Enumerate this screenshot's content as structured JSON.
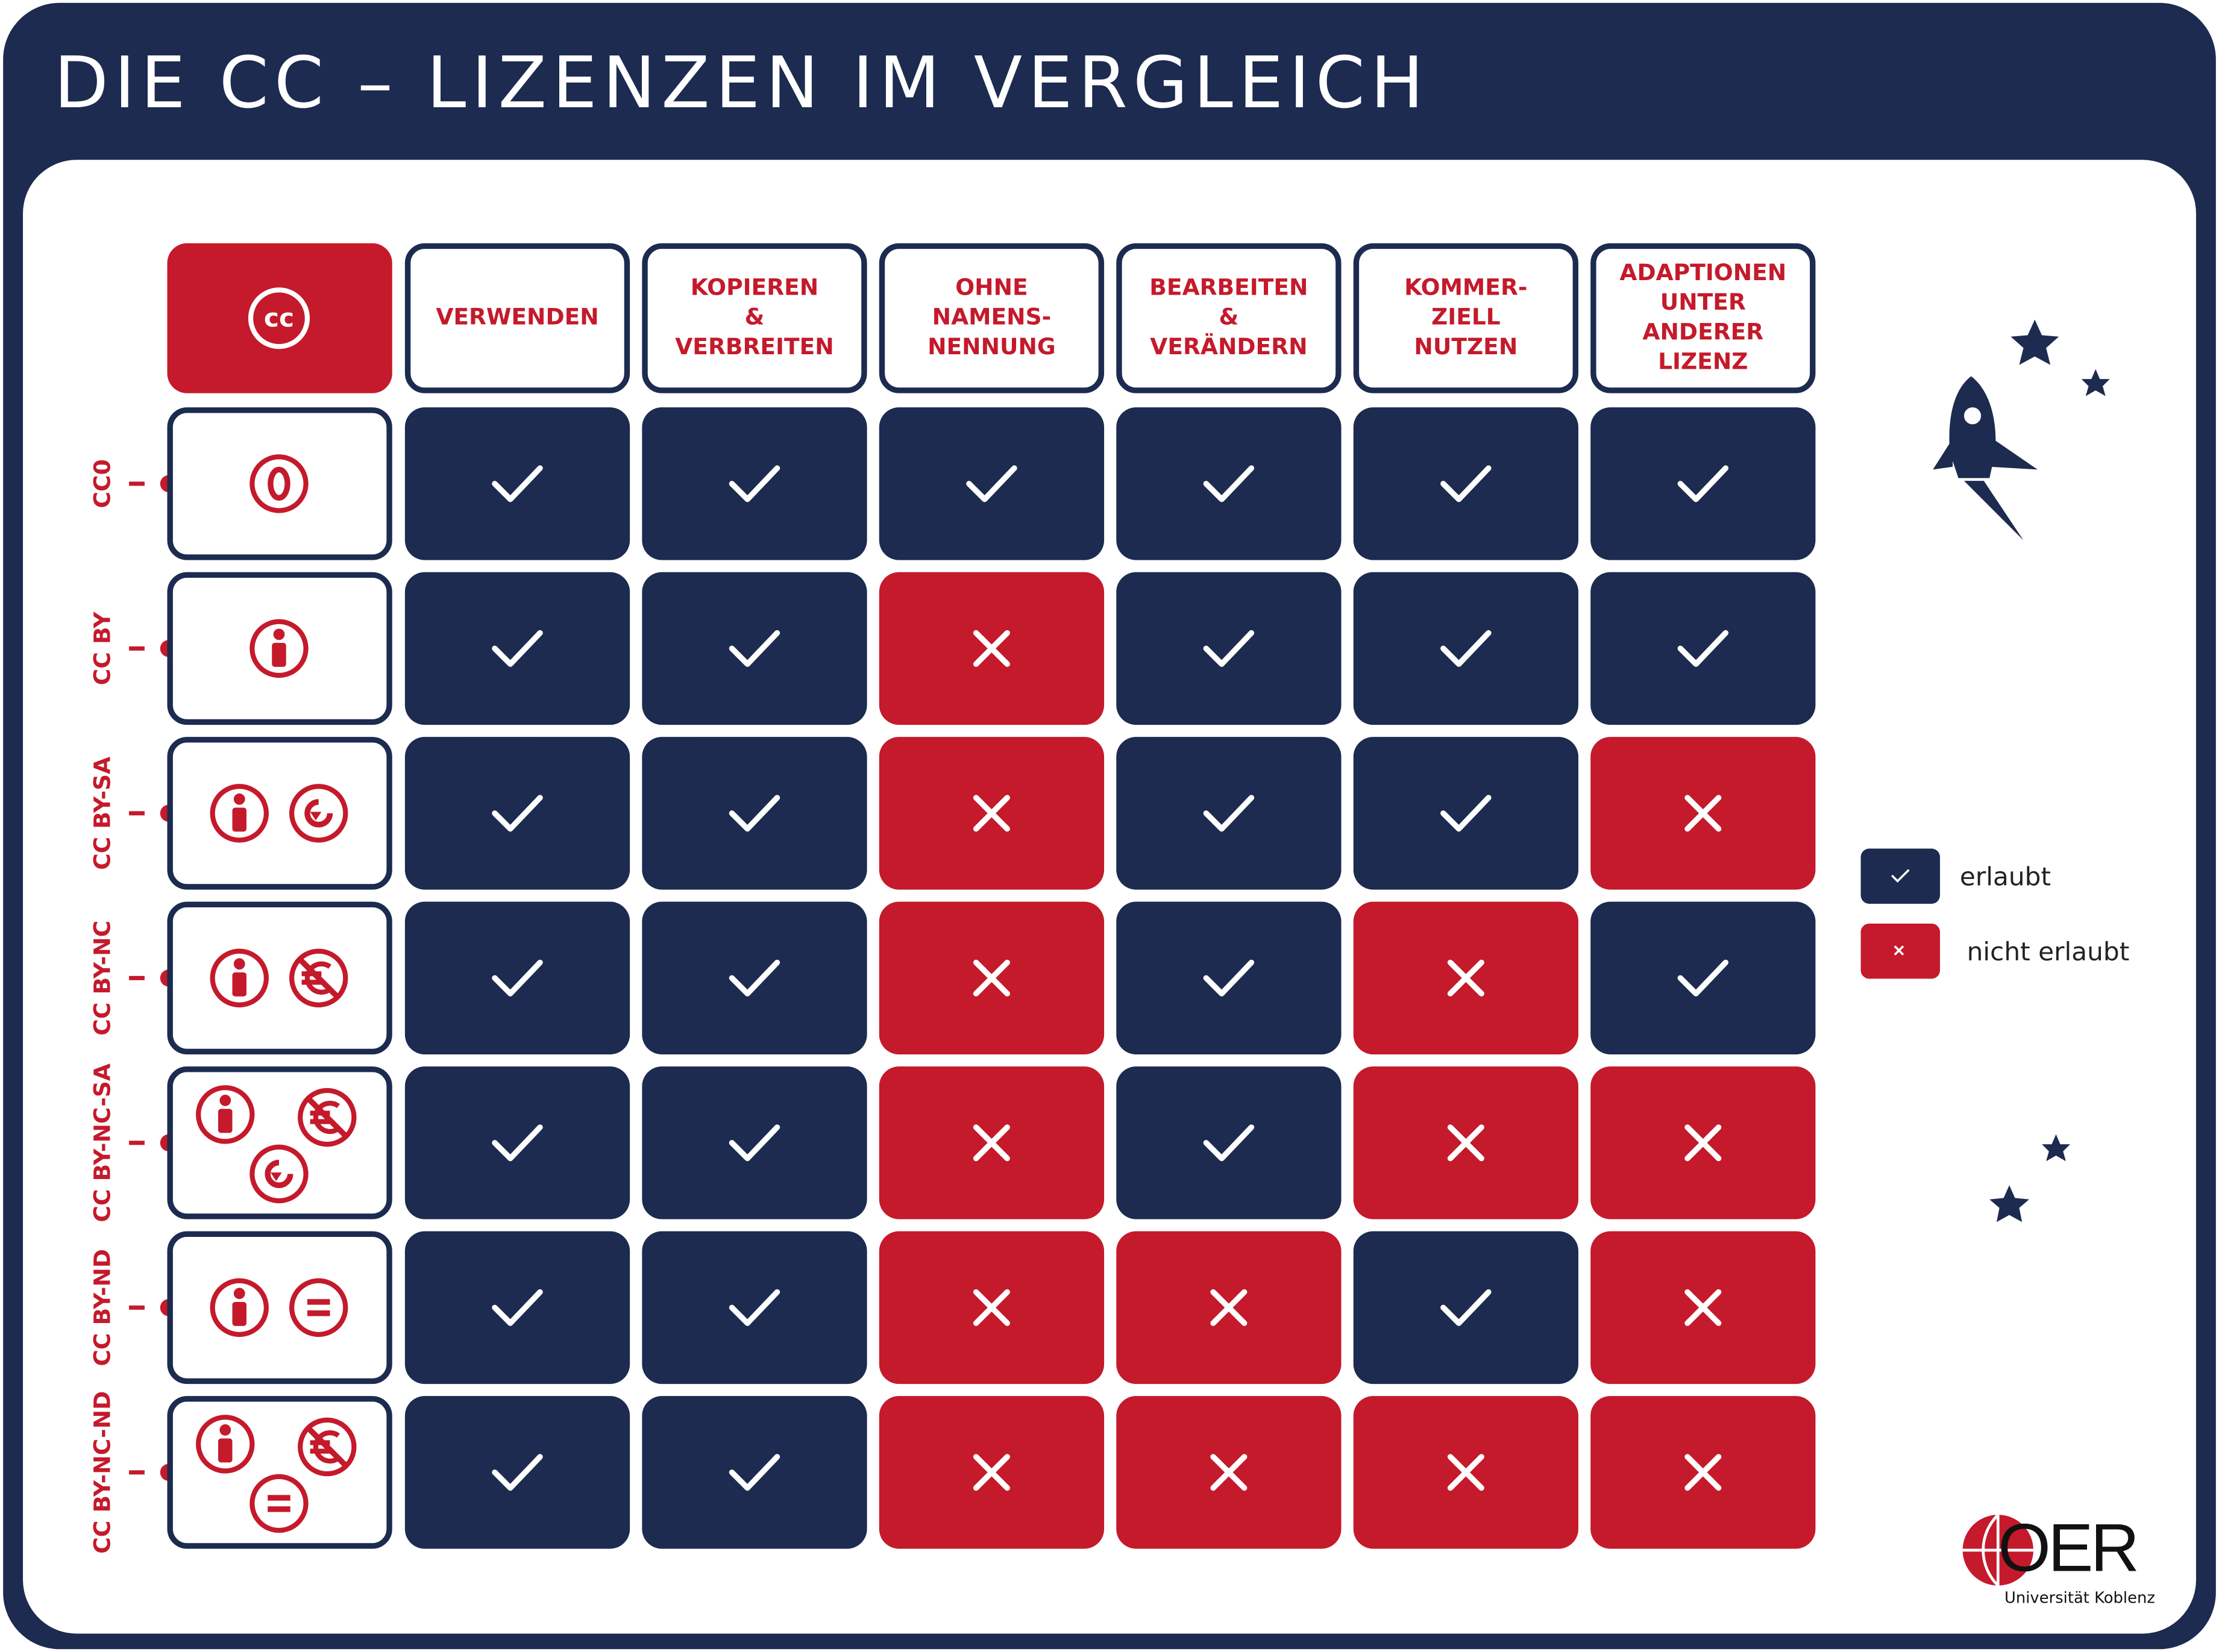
{
  "header": {
    "title": "DIE CC – LIZENZEN IM VERGLEICH"
  },
  "table": {
    "corner": "cc",
    "columns": [
      [
        "VERWENDEN"
      ],
      [
        "KOPIEREN",
        "&",
        "VERBREITEN"
      ],
      [
        "OHNE",
        "NAMENS-",
        "NENNUNG"
      ],
      [
        "BEARBEITEN",
        "&",
        "VERÄNDERN"
      ],
      [
        "KOMMER-",
        "ZIELL",
        "NUTZEN"
      ],
      [
        "ADAPTIONEN",
        "UNTER",
        "ANDERER",
        "LIZENZ"
      ]
    ],
    "rows": [
      {
        "label": "CC0",
        "allowed": [
          true,
          true,
          true,
          true,
          true,
          true
        ]
      },
      {
        "label": "CC BY",
        "allowed": [
          true,
          true,
          false,
          true,
          true,
          true
        ]
      },
      {
        "label": "CC BY-SA",
        "allowed": [
          true,
          true,
          false,
          true,
          true,
          false
        ]
      },
      {
        "label": "CC BY-NC",
        "allowed": [
          true,
          true,
          false,
          true,
          false,
          true
        ]
      },
      {
        "label": "CC BY-NC-SA",
        "allowed": [
          true,
          true,
          false,
          true,
          false,
          false
        ]
      },
      {
        "label": "CC BY-ND",
        "allowed": [
          true,
          true,
          false,
          false,
          true,
          false
        ]
      },
      {
        "label": "CC BY-NC-ND",
        "allowed": [
          true,
          true,
          false,
          false,
          false,
          false
        ]
      }
    ]
  },
  "legend": [
    {
      "allowed": true,
      "label": "erlaubt"
    },
    {
      "allowed": false,
      "label": "nicht erlaubt"
    }
  ],
  "logo": {
    "name": "OER",
    "subtitle": "Universität Koblenz"
  }
}
